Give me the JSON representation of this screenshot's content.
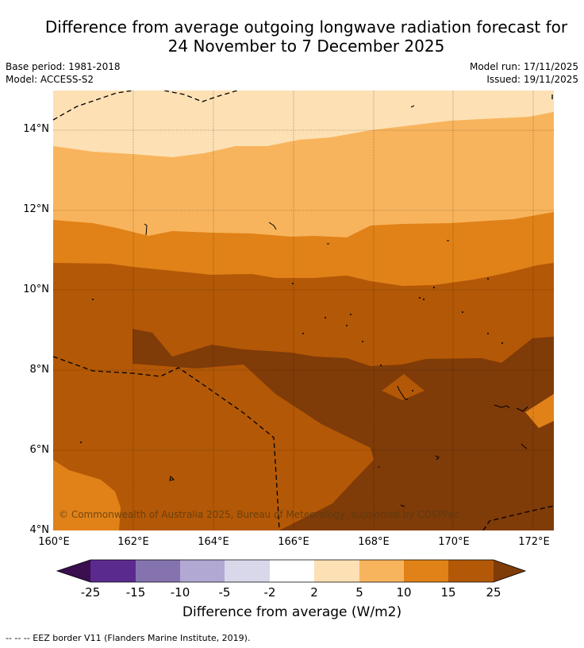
{
  "title_line1": "Difference from average outgoing longwave radiation forecast for",
  "title_line2": "24 November to 7 December 2025",
  "base_period": "Base period: 1981-2018",
  "model": "Model: ACCESS-S2",
  "model_run": "Model run: 17/11/2025",
  "issued": "Issued: 19/11/2025",
  "credit": "© Commonwealth of Australia 2025, Bureau of Meteorology, supported by COSPPac",
  "lat_labels": [
    "14°N",
    "12°N",
    "10°N",
    "8°N",
    "6°N",
    "4°N"
  ],
  "lon_labels": [
    "160°E",
    "162°E",
    "164°E",
    "166°E",
    "168°E",
    "170°E",
    "172°E"
  ],
  "legend": {
    "ticks": [
      "-25",
      "-15",
      "-10",
      "-5",
      "-2",
      "2",
      "5",
      "10",
      "15",
      "25"
    ],
    "colors": [
      "#3b0f4f",
      "#5b2a8f",
      "#8573b0",
      "#b2a8d4",
      "#d8d8ea",
      "#ffffff",
      "#fde0b4",
      "#f8b45c",
      "#e08218",
      "#b35806",
      "#7f3b08"
    ],
    "label": "Difference from average (W/m2)"
  },
  "footnote": "--  --  -- EEZ border V11 (Flanders Marine Institute, 2019)."
}
